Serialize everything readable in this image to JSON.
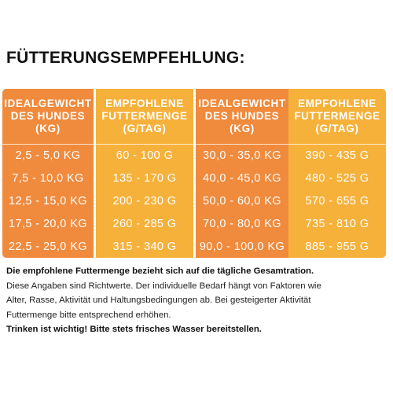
{
  "title": "FÜTTERUNGSEMPFEHLUNG:",
  "table": {
    "headers": [
      [
        "IDEALGEWICHT",
        "DES HUNDES",
        "(KG)"
      ],
      [
        "EMPFOHLENE",
        "FUTTERMENGE",
        "(G/TAG)"
      ],
      [
        "IDEALGEWICHT",
        "DES HUNDES",
        "(KG)"
      ],
      [
        "EMPFOHLENE",
        "FUTTERMENGE",
        "(G/TAG)"
      ]
    ],
    "rows": [
      [
        "2,5 - 5,0 KG",
        "60 - 100 G",
        "30,0 - 35,0 KG",
        "390 - 435 G"
      ],
      [
        "7,5 - 10,0 KG",
        "135 - 170 G",
        "40,0 - 45,0 KG",
        "480 - 525 G"
      ],
      [
        "12,5 - 15,0 KG",
        "200 - 230 G",
        "50,0 - 60,0 KG",
        "570 - 655 G"
      ],
      [
        "17,5 - 20,0 KG",
        "260 - 285 G",
        "70,0 - 80,0 KG",
        "735 - 810 G"
      ],
      [
        "22,5 - 25,0 KG",
        "315 - 340 G",
        "90,0 - 100,0 KG",
        "885 - 955 G"
      ]
    ]
  },
  "notes": {
    "line1": "Die empfohlene Futtermenge bezieht sich auf die tägliche Gesamtration.",
    "line2": "Diese Angaben sind Richtwerte. Der individuelle Bedarf hängt von Faktoren wie",
    "line3": "Alter, Rasse, Aktivität und Haltungsbedingungen ab. Bei gesteigerter Aktivität",
    "line4": "Futtermenge bitte entsprechend erhöhen.",
    "line5": "Trinken ist wichtig! Bitte stets frisches Wasser bereitstellen."
  },
  "colors": {
    "weight_column": "#f08a3c",
    "amount_column": "#f6b13b",
    "text_on_table": "#ffffff"
  }
}
